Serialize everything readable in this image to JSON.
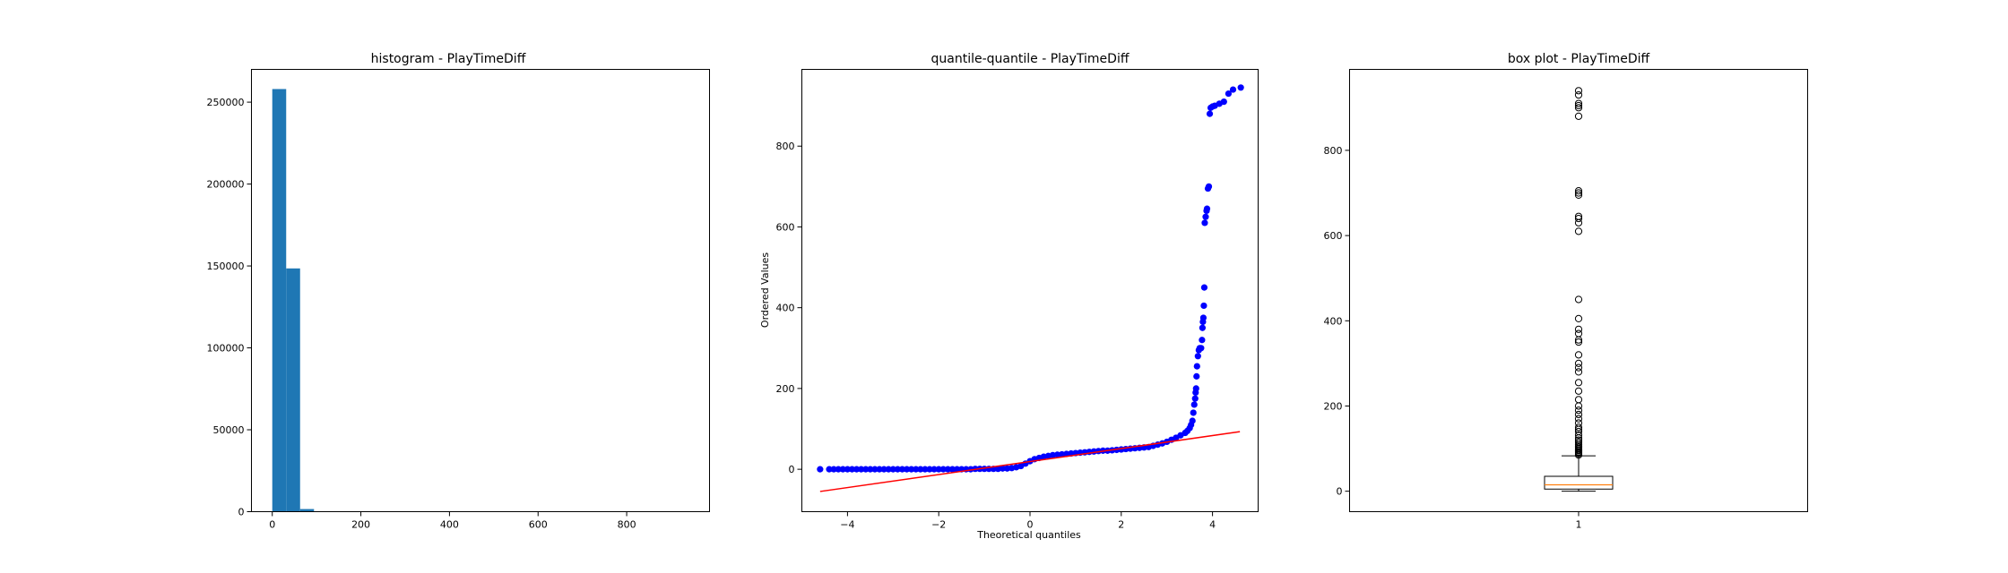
{
  "chart_data": [
    {
      "type": "bar",
      "subtype": "histogram",
      "title": "histogram - PlayTimeDiff",
      "xlabel": "",
      "ylabel": "",
      "xlim": [
        -47,
        987
      ],
      "ylim": [
        0,
        270000
      ],
      "xticks": [
        0,
        200,
        400,
        600,
        800
      ],
      "yticks": [
        0,
        50000,
        100000,
        150000,
        200000,
        250000
      ],
      "bin_width": 31.4,
      "bins": [
        {
          "x0": 0,
          "x1": 31.4,
          "count": 258000
        },
        {
          "x0": 31.4,
          "x1": 62.8,
          "count": 148500
        },
        {
          "x0": 62.8,
          "x1": 94.2,
          "count": 1600
        },
        {
          "x0": 94.2,
          "x1": 125.6,
          "count": 150
        },
        {
          "x0": 125.6,
          "x1": 157.0,
          "count": 80
        },
        {
          "x0": 157.0,
          "x1": 188.4,
          "count": 30
        }
      ],
      "bar_color": "#1f77b4",
      "grid": false
    },
    {
      "type": "scatter",
      "subtype": "qq-plot",
      "title": "quantile-quantile - PlayTimeDiff",
      "xlabel": "Theoretical quantiles",
      "ylabel": "Ordered Values",
      "xlim": [
        -5.0,
        5.0
      ],
      "ylim": [
        -105,
        990
      ],
      "xticks": [
        -4,
        -2,
        0,
        2,
        4
      ],
      "xtick_labels": [
        "−4",
        "−2",
        "0",
        "2",
        "4"
      ],
      "yticks": [
        0,
        200,
        400,
        600,
        800
      ],
      "points": [
        [
          -4.6,
          0
        ],
        [
          -4.4,
          0
        ],
        [
          -4.3,
          0
        ],
        [
          -4.2,
          0
        ],
        [
          -4.1,
          0
        ],
        [
          -4.0,
          0
        ],
        [
          -3.9,
          0
        ],
        [
          -3.8,
          0
        ],
        [
          -3.7,
          0
        ],
        [
          -3.6,
          0
        ],
        [
          -3.5,
          0
        ],
        [
          -3.4,
          0
        ],
        [
          -3.3,
          0
        ],
        [
          -3.2,
          0
        ],
        [
          -3.1,
          0
        ],
        [
          -3.0,
          0
        ],
        [
          -2.9,
          0
        ],
        [
          -2.8,
          0
        ],
        [
          -2.7,
          0
        ],
        [
          -2.6,
          0
        ],
        [
          -2.5,
          0
        ],
        [
          -2.4,
          0
        ],
        [
          -2.3,
          0
        ],
        [
          -2.2,
          0
        ],
        [
          -2.1,
          0
        ],
        [
          -2.0,
          0
        ],
        [
          -1.9,
          0
        ],
        [
          -1.8,
          0
        ],
        [
          -1.7,
          0
        ],
        [
          -1.6,
          0
        ],
        [
          -1.5,
          0
        ],
        [
          -1.4,
          0
        ],
        [
          -1.3,
          0
        ],
        [
          -1.2,
          1
        ],
        [
          -1.1,
          1
        ],
        [
          -1.0,
          1
        ],
        [
          -0.9,
          1
        ],
        [
          -0.8,
          1
        ],
        [
          -0.7,
          1
        ],
        [
          -0.6,
          2
        ],
        [
          -0.5,
          2
        ],
        [
          -0.4,
          3
        ],
        [
          -0.3,
          5
        ],
        [
          -0.2,
          8
        ],
        [
          -0.1,
          14
        ],
        [
          0.0,
          20
        ],
        [
          0.1,
          25
        ],
        [
          0.2,
          28
        ],
        [
          0.3,
          31
        ],
        [
          0.4,
          33
        ],
        [
          0.5,
          35
        ],
        [
          0.6,
          36
        ],
        [
          0.7,
          37
        ],
        [
          0.8,
          38
        ],
        [
          0.9,
          39
        ],
        [
          1.0,
          40
        ],
        [
          1.1,
          41
        ],
        [
          1.2,
          42
        ],
        [
          1.3,
          43
        ],
        [
          1.4,
          44
        ],
        [
          1.5,
          45
        ],
        [
          1.6,
          46
        ],
        [
          1.7,
          46
        ],
        [
          1.8,
          47
        ],
        [
          1.9,
          48
        ],
        [
          2.0,
          49
        ],
        [
          2.1,
          50
        ],
        [
          2.2,
          51
        ],
        [
          2.3,
          52
        ],
        [
          2.4,
          53
        ],
        [
          2.5,
          54
        ],
        [
          2.6,
          55
        ],
        [
          2.7,
          58
        ],
        [
          2.8,
          61
        ],
        [
          2.9,
          64
        ],
        [
          3.0,
          68
        ],
        [
          3.1,
          73
        ],
        [
          3.2,
          78
        ],
        [
          3.3,
          84
        ],
        [
          3.4,
          90
        ],
        [
          3.45,
          95
        ],
        [
          3.5,
          102
        ],
        [
          3.53,
          110
        ],
        [
          3.56,
          120
        ],
        [
          3.58,
          140
        ],
        [
          3.6,
          160
        ],
        [
          3.62,
          175
        ],
        [
          3.63,
          190
        ],
        [
          3.64,
          200
        ],
        [
          3.65,
          230
        ],
        [
          3.66,
          255
        ],
        [
          3.68,
          280
        ],
        [
          3.7,
          295
        ],
        [
          3.72,
          300
        ],
        [
          3.75,
          300
        ],
        [
          3.77,
          320
        ],
        [
          3.78,
          350
        ],
        [
          3.79,
          365
        ],
        [
          3.8,
          375
        ],
        [
          3.81,
          405
        ],
        [
          3.82,
          450
        ],
        [
          3.83,
          610
        ],
        [
          3.85,
          625
        ],
        [
          3.87,
          640
        ],
        [
          3.88,
          645
        ],
        [
          3.9,
          695
        ],
        [
          3.92,
          700
        ],
        [
          3.94,
          880
        ],
        [
          3.96,
          895
        ],
        [
          4.0,
          898
        ],
        [
          4.05,
          900
        ],
        [
          4.15,
          905
        ],
        [
          4.25,
          910
        ],
        [
          4.35,
          930
        ],
        [
          4.45,
          940
        ],
        [
          4.62,
          945
        ]
      ],
      "point_color": "#0000ff",
      "fit_line": {
        "x": [
          -4.6,
          4.6
        ],
        "y": [
          -55,
          93
        ],
        "color": "#ff0000"
      },
      "grid": false
    },
    {
      "type": "box",
      "title": "box plot - PlayTimeDiff",
      "xlabel": "",
      "ylabel": "",
      "category": "1",
      "xlim": [
        0.5,
        1.5
      ],
      "ylim": [
        -48,
        990
      ],
      "yticks": [
        0,
        200,
        400,
        600,
        800
      ],
      "whisker_low": 0,
      "q1": 5,
      "median": 15,
      "q3": 35,
      "whisker_high": 83,
      "median_color": "#ff7f0e",
      "outliers": [
        85,
        88,
        90,
        92,
        95,
        97,
        100,
        103,
        106,
        110,
        115,
        120,
        125,
        132,
        140,
        145,
        150,
        160,
        170,
        180,
        190,
        200,
        215,
        235,
        255,
        280,
        290,
        300,
        320,
        350,
        355,
        370,
        380,
        405,
        450,
        610,
        630,
        640,
        645,
        695,
        700,
        705,
        880,
        900,
        905,
        910,
        930,
        940
      ],
      "grid": false
    }
  ]
}
